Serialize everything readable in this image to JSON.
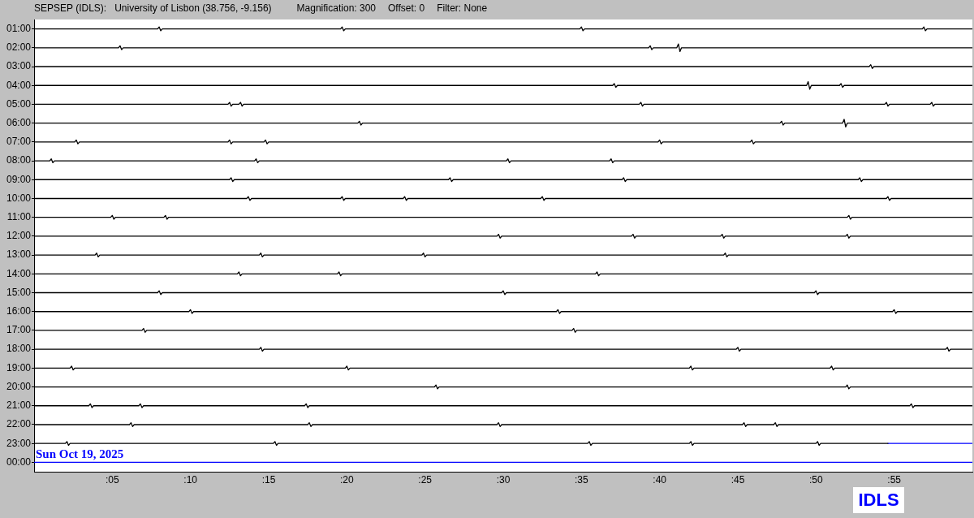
{
  "chart_data": {
    "type": "line",
    "title": "SEPSEP (IDLS):",
    "subtitle": "University of Lisbon (38.756, -9.156)",
    "annotations": [
      "Magnification: 300",
      "Offset: 0",
      "Filter: None",
      {
        "text": "Sun Oct 19, 2025",
        "x": 0,
        "y": 24
      },
      "IDLS"
    ],
    "xlim": [
      0,
      60
    ],
    "xticks": [
      {
        "value": 5,
        "label": ":05"
      },
      {
        "value": 10,
        "label": ":10"
      },
      {
        "value": 15,
        "label": ":15"
      },
      {
        "value": 20,
        "label": ":20"
      },
      {
        "value": 25,
        "label": ":25"
      },
      {
        "value": 30,
        "label": ":30"
      },
      {
        "value": 35,
        "label": ":35"
      },
      {
        "value": 40,
        "label": ":40"
      },
      {
        "value": 45,
        "label": ":45"
      },
      {
        "value": 50,
        "label": ":50"
      },
      {
        "value": 55,
        "label": ":55"
      }
    ],
    "ylim": [
      24.5,
      0.5
    ],
    "yticks": [
      {
        "value": 1,
        "label": "01:00"
      },
      {
        "value": 2,
        "label": "02:00"
      },
      {
        "value": 3,
        "label": "03:00"
      },
      {
        "value": 4,
        "label": "04:00"
      },
      {
        "value": 5,
        "label": "05:00"
      },
      {
        "value": 6,
        "label": "06:00"
      },
      {
        "value": 7,
        "label": "07:00"
      },
      {
        "value": 8,
        "label": "08:00"
      },
      {
        "value": 9,
        "label": "09:00"
      },
      {
        "value": 10,
        "label": "10:00"
      },
      {
        "value": 11,
        "label": "11:00"
      },
      {
        "value": 12,
        "label": "12:00"
      },
      {
        "value": 13,
        "label": "13:00"
      },
      {
        "value": 14,
        "label": "14:00"
      },
      {
        "value": 15,
        "label": "15:00"
      },
      {
        "value": 16,
        "label": "16:00"
      },
      {
        "value": 17,
        "label": "17:00"
      },
      {
        "value": 18,
        "label": "18:00"
      },
      {
        "value": 19,
        "label": "19:00"
      },
      {
        "value": 20,
        "label": "20:00"
      },
      {
        "value": 21,
        "label": "21:00"
      },
      {
        "value": 22,
        "label": "22:00"
      },
      {
        "value": 23,
        "label": "23:00"
      },
      {
        "value": 24,
        "label": "00:00"
      }
    ],
    "series": [
      {
        "color": "#000000",
        "x": [
          0,
          7.9,
          8,
          8.1,
          8.2,
          19.6,
          19.7,
          19.8,
          19.9,
          34.9,
          35,
          35.1,
          35.2,
          56.8,
          56.9,
          57,
          57.1,
          60
        ],
        "values": [
          1,
          1,
          0.9,
          1.1,
          1,
          1,
          0.9,
          1.1,
          1,
          1,
          0.9,
          1.1,
          1,
          1,
          0.9,
          1.1,
          1,
          1
        ]
      },
      {
        "color": "#000000",
        "x": [
          0,
          5.4,
          5.5,
          5.6,
          5.7,
          39.3,
          39.4,
          39.5,
          39.6,
          41.1,
          41.2,
          41.3,
          41.4,
          60
        ],
        "values": [
          2,
          2,
          1.9,
          2.1,
          2,
          2,
          1.9,
          2.1,
          2,
          2,
          1.8,
          2.2,
          2,
          2
        ]
      },
      {
        "color": "#000000",
        "x": [
          0,
          53.4,
          53.5,
          53.6,
          53.7,
          60
        ],
        "values": [
          3,
          3,
          2.9,
          3.1,
          3,
          3
        ]
      },
      {
        "color": "#000000",
        "x": [
          0,
          37,
          37.1,
          37.2,
          37.3,
          49.4,
          49.5,
          49.6,
          49.7,
          51.5,
          51.6,
          51.7,
          51.8,
          60
        ],
        "values": [
          4,
          4,
          3.9,
          4.1,
          4,
          4,
          3.8,
          4.2,
          4,
          4,
          3.9,
          4.1,
          4,
          4
        ]
      },
      {
        "color": "#000000",
        "x": [
          0,
          12.4,
          12.5,
          12.6,
          12.7,
          13.1,
          13.2,
          13.3,
          13.4,
          38.7,
          38.8,
          38.9,
          39,
          54.4,
          54.5,
          54.6,
          54.7,
          57.3,
          57.4,
          57.5,
          57.6,
          60
        ],
        "values": [
          5,
          5,
          4.9,
          5.1,
          5,
          5,
          4.9,
          5.1,
          5,
          5,
          4.9,
          5.1,
          5,
          5,
          4.9,
          5.1,
          5,
          5,
          4.9,
          5.1,
          5,
          5
        ]
      },
      {
        "color": "#000000",
        "x": [
          0,
          20.7,
          20.8,
          20.9,
          21,
          47.7,
          47.8,
          47.9,
          48,
          51.7,
          51.8,
          51.9,
          52,
          60
        ],
        "values": [
          6,
          6,
          5.9,
          6.1,
          6,
          6,
          5.9,
          6.1,
          6,
          6,
          5.8,
          6.2,
          6,
          6
        ]
      },
      {
        "color": "#000000",
        "x": [
          0,
          2.6,
          2.7,
          2.8,
          2.9,
          12.4,
          12.5,
          12.6,
          12.7,
          14.7,
          14.8,
          14.9,
          15,
          39.9,
          40,
          40.1,
          40.2,
          45.8,
          45.9,
          46,
          46.1,
          60
        ],
        "values": [
          7,
          7,
          6.9,
          7.1,
          7,
          7,
          6.9,
          7.1,
          7,
          7,
          6.9,
          7.1,
          7,
          7,
          6.9,
          7.1,
          7,
          7,
          6.9,
          7.1,
          7,
          7
        ]
      },
      {
        "color": "#000000",
        "x": [
          0,
          1,
          1.1,
          1.2,
          1.3,
          14.1,
          14.2,
          14.3,
          14.4,
          30.2,
          30.3,
          30.4,
          30.5,
          36.8,
          36.9,
          37,
          37.1,
          60
        ],
        "values": [
          8,
          8,
          7.9,
          8.1,
          8,
          8,
          7.9,
          8.1,
          8,
          8,
          7.9,
          8.1,
          8,
          8,
          7.9,
          8.1,
          8,
          8
        ]
      },
      {
        "color": "#000000",
        "x": [
          0,
          12.5,
          12.6,
          12.7,
          12.8,
          26.5,
          26.6,
          26.7,
          26.8,
          37.6,
          37.7,
          37.8,
          37.9,
          52.7,
          52.8,
          52.9,
          53,
          60
        ],
        "values": [
          9,
          9,
          8.9,
          9.1,
          9,
          9,
          8.9,
          9.1,
          9,
          9,
          8.9,
          9.1,
          9,
          9,
          8.9,
          9.1,
          9,
          9
        ]
      },
      {
        "color": "#000000",
        "x": [
          0,
          13.6,
          13.7,
          13.8,
          13.9,
          19.6,
          19.7,
          19.8,
          19.9,
          23.6,
          23.7,
          23.8,
          23.9,
          32.4,
          32.5,
          32.6,
          32.7,
          54.5,
          54.6,
          54.7,
          54.8,
          60
        ],
        "values": [
          10,
          10,
          9.9,
          10.1,
          10,
          10,
          9.9,
          10.1,
          10,
          10,
          9.9,
          10.1,
          10,
          10,
          9.9,
          10.1,
          10,
          10,
          9.9,
          10.1,
          10,
          10
        ]
      },
      {
        "color": "#000000",
        "x": [
          0,
          4.9,
          5,
          5.1,
          5.2,
          8.3,
          8.4,
          8.5,
          8.6,
          52,
          52.1,
          52.2,
          52.3,
          60
        ],
        "values": [
          11,
          11,
          10.9,
          11.1,
          11,
          11,
          10.9,
          11.1,
          11,
          11,
          10.9,
          11.1,
          11,
          11
        ]
      },
      {
        "color": "#000000",
        "x": [
          0,
          29.6,
          29.7,
          29.8,
          29.9,
          38.2,
          38.3,
          38.4,
          38.5,
          43.9,
          44,
          44.1,
          44.2,
          51.9,
          52,
          52.1,
          52.2,
          60
        ],
        "values": [
          12,
          12,
          11.9,
          12.1,
          12,
          12,
          11.9,
          12.1,
          12,
          12,
          11.9,
          12.1,
          12,
          12,
          11.9,
          12.1,
          12,
          12
        ]
      },
      {
        "color": "#000000",
        "x": [
          0,
          3.9,
          4,
          4.1,
          4.2,
          14.4,
          14.5,
          14.6,
          14.7,
          24.8,
          24.9,
          25,
          25.1,
          44.1,
          44.2,
          44.3,
          44.4,
          60
        ],
        "values": [
          13,
          13,
          12.9,
          13.1,
          13,
          13,
          12.9,
          13.1,
          13,
          13,
          12.9,
          13.1,
          13,
          13,
          12.9,
          13.1,
          13,
          13
        ]
      },
      {
        "color": "#000000",
        "x": [
          0,
          13,
          13.1,
          13.2,
          13.3,
          19.4,
          19.5,
          19.6,
          19.7,
          35.9,
          36,
          36.1,
          36.2,
          60
        ],
        "values": [
          14,
          14,
          13.9,
          14.1,
          14,
          14,
          13.9,
          14.1,
          14,
          14,
          13.9,
          14.1,
          14,
          14
        ]
      },
      {
        "color": "#000000",
        "x": [
          0,
          7.9,
          8,
          8.1,
          8.2,
          29.9,
          30,
          30.1,
          30.2,
          49.9,
          50,
          50.1,
          50.2,
          60
        ],
        "values": [
          15,
          15,
          14.9,
          15.1,
          15,
          15,
          14.9,
          15.1,
          15,
          15,
          14.9,
          15.1,
          15,
          15
        ]
      },
      {
        "color": "#000000",
        "x": [
          0,
          9.9,
          10,
          10.1,
          10.2,
          33.4,
          33.5,
          33.6,
          33.7,
          54.9,
          55,
          55.1,
          55.2,
          60
        ],
        "values": [
          16,
          16,
          15.9,
          16.1,
          16,
          16,
          15.9,
          16.1,
          16,
          16,
          15.9,
          16.1,
          16,
          16
        ]
      },
      {
        "color": "#000000",
        "x": [
          0,
          6.9,
          7,
          7.1,
          7.2,
          34.4,
          34.5,
          34.6,
          34.7,
          60
        ],
        "values": [
          17,
          17,
          16.9,
          17.1,
          17,
          17,
          16.9,
          17.1,
          17,
          17
        ]
      },
      {
        "color": "#000000",
        "x": [
          0,
          14.4,
          14.5,
          14.6,
          14.7,
          44.9,
          45,
          45.1,
          45.2,
          58.3,
          58.4,
          58.5,
          58.6,
          60
        ],
        "values": [
          18,
          18,
          17.9,
          18.1,
          18,
          18,
          17.9,
          18.1,
          18,
          18,
          17.9,
          18.1,
          18,
          18
        ]
      },
      {
        "color": "#000000",
        "x": [
          0,
          2.3,
          2.4,
          2.5,
          2.6,
          19.9,
          20,
          20.1,
          20.2,
          41.9,
          42,
          42.1,
          42.2,
          50.9,
          51,
          51.1,
          51.2,
          60
        ],
        "values": [
          19,
          19,
          18.9,
          19.1,
          19,
          19,
          18.9,
          19.1,
          19,
          19,
          18.9,
          19.1,
          19,
          19,
          18.9,
          19.1,
          19,
          19
        ]
      },
      {
        "color": "#000000",
        "x": [
          0,
          25.6,
          25.7,
          25.8,
          25.9,
          51.9,
          52,
          52.1,
          52.2,
          60
        ],
        "values": [
          20,
          20,
          19.9,
          20.1,
          20,
          20,
          19.9,
          20.1,
          20,
          20
        ]
      },
      {
        "color": "#000000",
        "x": [
          0,
          3.5,
          3.6,
          3.7,
          3.8,
          6.7,
          6.8,
          6.9,
          7,
          17.3,
          17.4,
          17.5,
          17.6,
          56,
          56.1,
          56.2,
          56.3,
          60
        ],
        "values": [
          21,
          21,
          20.9,
          21.1,
          21,
          21,
          20.9,
          21.1,
          21,
          21,
          20.9,
          21.1,
          21,
          21,
          20.9,
          21.1,
          21,
          21
        ]
      },
      {
        "color": "#000000",
        "x": [
          0,
          6.1,
          6.2,
          6.3,
          6.4,
          17.5,
          17.6,
          17.7,
          17.8,
          29.6,
          29.7,
          29.8,
          29.9,
          45.3,
          45.4,
          45.5,
          45.6,
          47.3,
          47.4,
          47.5,
          47.6,
          60
        ],
        "values": [
          22,
          22,
          21.9,
          22.1,
          22,
          22,
          21.9,
          22.1,
          22,
          22,
          21.9,
          22.1,
          22,
          22,
          21.9,
          22.1,
          22,
          22,
          21.9,
          22.1,
          22,
          22
        ]
      },
      {
        "color": "#000000",
        "x": [
          0,
          2,
          2.1,
          2.2,
          2.3,
          15.3,
          15.4,
          15.5,
          15.6,
          35.4,
          35.5,
          35.6,
          35.7,
          41.9,
          42,
          42.1,
          42.2,
          50,
          50.1,
          50.2,
          50.3,
          54.6
        ],
        "values": [
          23,
          23,
          22.9,
          23.1,
          23,
          23,
          22.9,
          23.1,
          23,
          23,
          22.9,
          23.1,
          23,
          23,
          22.9,
          23.1,
          23,
          23,
          22.9,
          23.1,
          23,
          23
        ]
      },
      {
        "color": "#0000ff",
        "x": [
          54.6,
          60
        ],
        "values": [
          23,
          23
        ]
      },
      {
        "color": "#0000ff",
        "x": [
          0,
          60
        ],
        "values": [
          24,
          24
        ]
      }
    ]
  }
}
